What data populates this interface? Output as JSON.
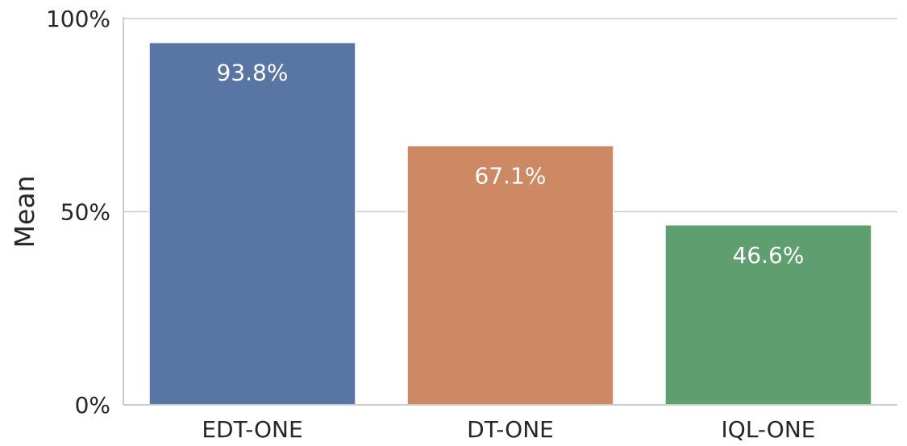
{
  "chart_data": {
    "type": "bar",
    "categories": [
      "EDT-ONE",
      "DT-ONE",
      "IQL-ONE"
    ],
    "values": [
      93.8,
      67.1,
      46.6
    ],
    "data_labels": [
      "93.8%",
      "67.1%",
      "46.6%"
    ],
    "colors": [
      "#5975a4",
      "#cc8963",
      "#5f9e6e"
    ],
    "ylabel": "Mean",
    "xlabel": "",
    "ylim": [
      0,
      100
    ],
    "yticks": [
      0,
      50,
      100
    ],
    "ytick_labels": [
      "0%",
      "50%",
      "100%"
    ],
    "grid": "y-major",
    "legend": "none"
  }
}
